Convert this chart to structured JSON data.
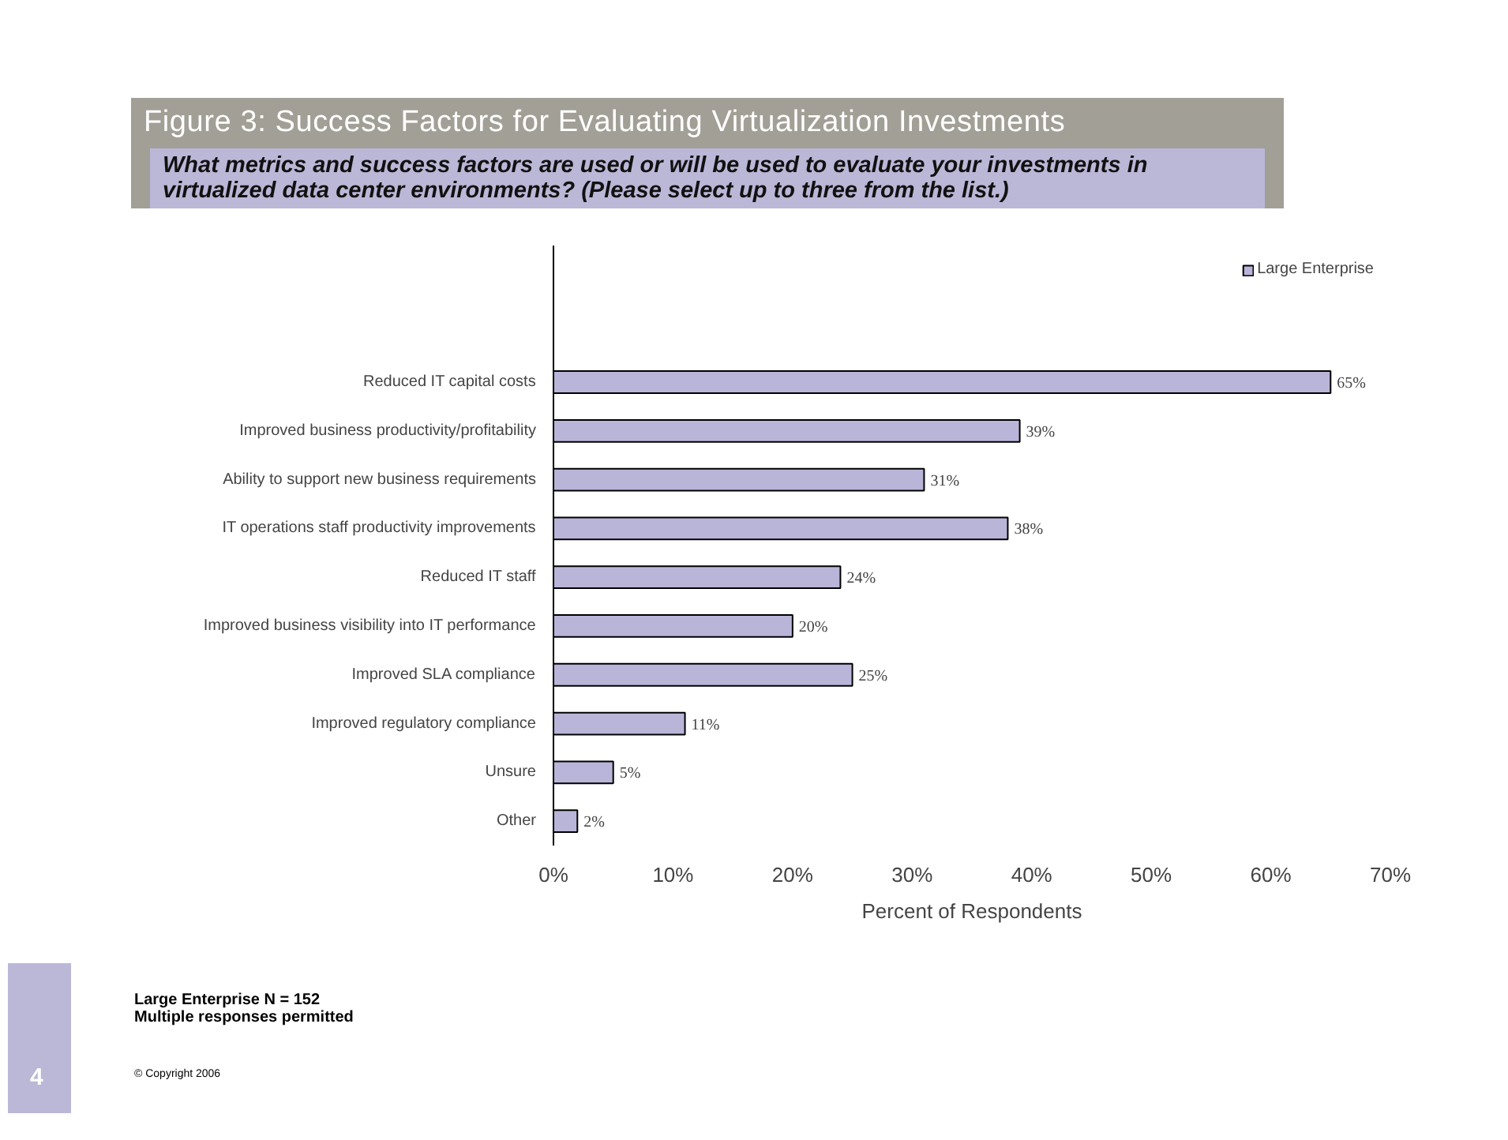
{
  "chart_data": {
    "type": "bar",
    "orientation": "horizontal",
    "title": "Figure 3: Success Factors for Evaluating Virtualization Investments",
    "subtitle": "What metrics and success factors are used or will be used to evaluate your investments in virtualized data center environments?  (Please select up to three  from the list.)",
    "xlabel": "Percent of Respondents",
    "categories": [
      "Reduced IT capital costs",
      "Improved business productivity/profitability",
      "Ability to support new business requirements",
      "IT operations staff productivity improvements",
      "Reduced IT staff",
      "Improved business visibility into IT performance",
      "Improved SLA compliance",
      "Improved regulatory compliance",
      "Unsure",
      "Other"
    ],
    "series": [
      {
        "name": "Large Enterprise",
        "color": "#b9b5d8",
        "values": [
          65,
          39,
          31,
          38,
          24,
          20,
          25,
          11,
          5,
          2
        ]
      }
    ],
    "value_labels": [
      "65%",
      "39%",
      "31%",
      "38%",
      "24%",
      "20%",
      "25%",
      "11%",
      "5%",
      "2%"
    ],
    "xlim": [
      0,
      70
    ],
    "xticks": [
      {
        "value": 0,
        "label": "0%"
      },
      {
        "value": 10,
        "label": "10%"
      },
      {
        "value": 20,
        "label": "20%"
      },
      {
        "value": 30,
        "label": "30%"
      },
      {
        "value": 40,
        "label": "40%"
      },
      {
        "value": 50,
        "label": "50%"
      },
      {
        "value": 60,
        "label": "60%"
      },
      {
        "value": 70,
        "label": "70%"
      }
    ],
    "legend": "top right",
    "grid": false,
    "annotations": [
      "Large Enterprise N = 152\nMultiple responses permitted",
      "© Copyright 2006",
      "4"
    ]
  }
}
